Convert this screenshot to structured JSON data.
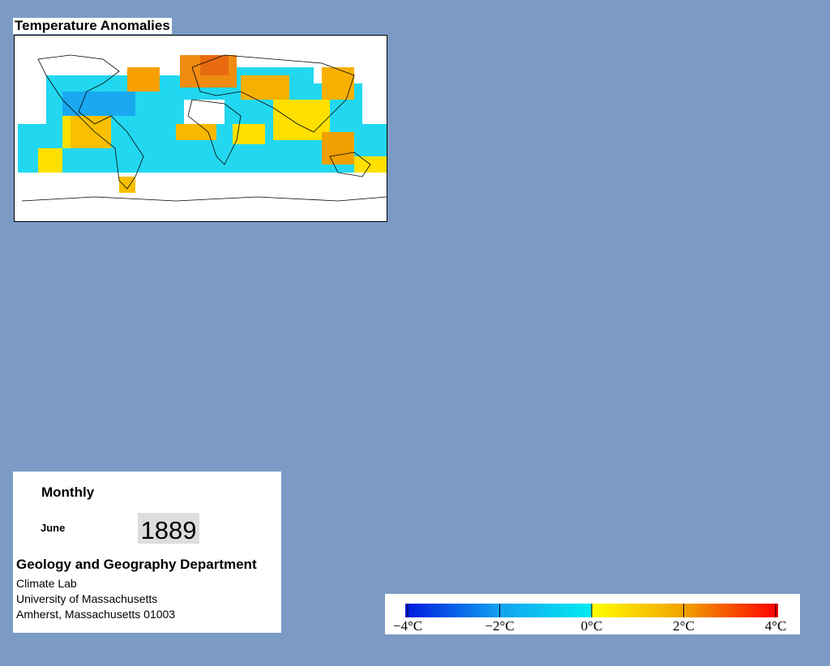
{
  "title": "Temperature Anomalies",
  "panel": {
    "period": "Monthly",
    "month": "June",
    "year": "1889",
    "department": "Geology and Geography Department",
    "address": [
      "Climate Lab",
      "University of Massachusetts",
      "Amherst, Massachusetts 01003"
    ]
  },
  "colorbar": {
    "range": [
      -4,
      4
    ],
    "ticks": [
      {
        "value": -4,
        "label": "−4°C"
      },
      {
        "value": -2,
        "label": "−2°C"
      },
      {
        "value": 0,
        "label": "0°C"
      },
      {
        "value": 2,
        "label": "2°C"
      },
      {
        "value": 4,
        "label": "4°C"
      }
    ]
  }
}
